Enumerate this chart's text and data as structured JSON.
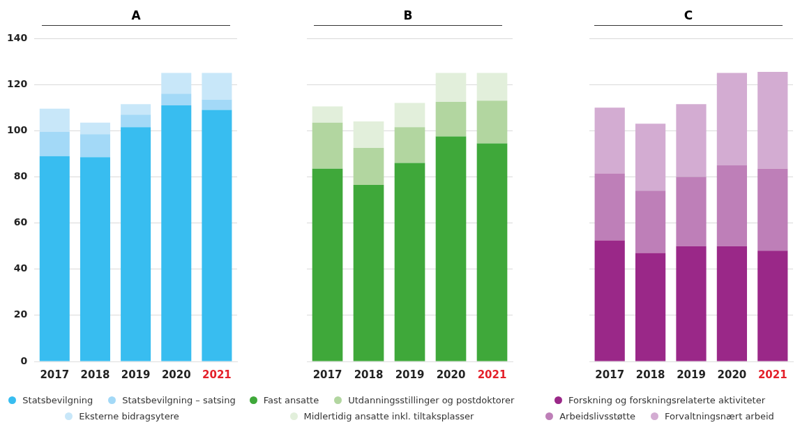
{
  "chart_data": [
    {
      "type": "bar",
      "title": "A",
      "stacked": true,
      "grid": "y",
      "legend": "bottom",
      "categories": [
        "2017",
        "2018",
        "2019",
        "2020",
        "2021"
      ],
      "ylim": [
        0,
        140
      ],
      "yticks": [
        0,
        20,
        40,
        60,
        80,
        100,
        120,
        140
      ],
      "series": [
        {
          "name": "Statsbevilgning",
          "color": "#38bdf0",
          "values": [
            89,
            88.5,
            101.5,
            111,
            109
          ]
        },
        {
          "name": "Statsbevilgning – satsing",
          "color": "#a3d9f7",
          "values": [
            10.5,
            10,
            5.5,
            5,
            4.5
          ]
        },
        {
          "name": "Eksterne bidragsytere",
          "color": "#c8e7f9",
          "values": [
            10,
            5,
            4.5,
            9,
            11.5
          ]
        }
      ]
    },
    {
      "type": "bar",
      "title": "B",
      "stacked": true,
      "grid": "y",
      "legend": "bottom",
      "tick_labels": "x",
      "categories": [
        "2017",
        "2018",
        "2019",
        "2020",
        "2021"
      ],
      "ylim": [
        0,
        140
      ],
      "yticks": [
        0,
        20,
        40,
        60,
        80,
        100,
        120,
        140
      ],
      "series": [
        {
          "name": "Fast ansatte",
          "color": "#3fa83a",
          "values": [
            83.5,
            76.5,
            86,
            97.5,
            94.5
          ]
        },
        {
          "name": "Utdanningsstillinger og postdoktorer",
          "color": "#b2d6a0",
          "values": [
            20,
            16,
            15.5,
            15,
            18.5
          ]
        },
        {
          "name": "Midlertidig ansatte inkl. tiltaksplasser",
          "color": "#e2efdb",
          "values": [
            7,
            11.5,
            10.5,
            12.5,
            12
          ]
        }
      ]
    },
    {
      "type": "bar",
      "title": "C",
      "stacked": true,
      "grid": "y",
      "legend": "bottom",
      "tick_labels": "x",
      "categories": [
        "2017",
        "2018",
        "2019",
        "2020",
        "2021"
      ],
      "ylim": [
        0,
        140
      ],
      "yticks": [
        0,
        20,
        40,
        60,
        80,
        100,
        120,
        140
      ],
      "series": [
        {
          "name": "Forskning og forskningsrelaterte aktiviteter",
          "color": "#9a2888",
          "values": [
            52.5,
            47,
            50,
            50,
            48
          ]
        },
        {
          "name": "Arbeidslivsstøtte",
          "color": "#be7fb8",
          "values": [
            29,
            27,
            30,
            35,
            35.5
          ]
        },
        {
          "name": "Forvaltningsnært arbeid",
          "color": "#d3acd2",
          "values": [
            28.5,
            29,
            31.5,
            40,
            42
          ]
        }
      ]
    }
  ]
}
